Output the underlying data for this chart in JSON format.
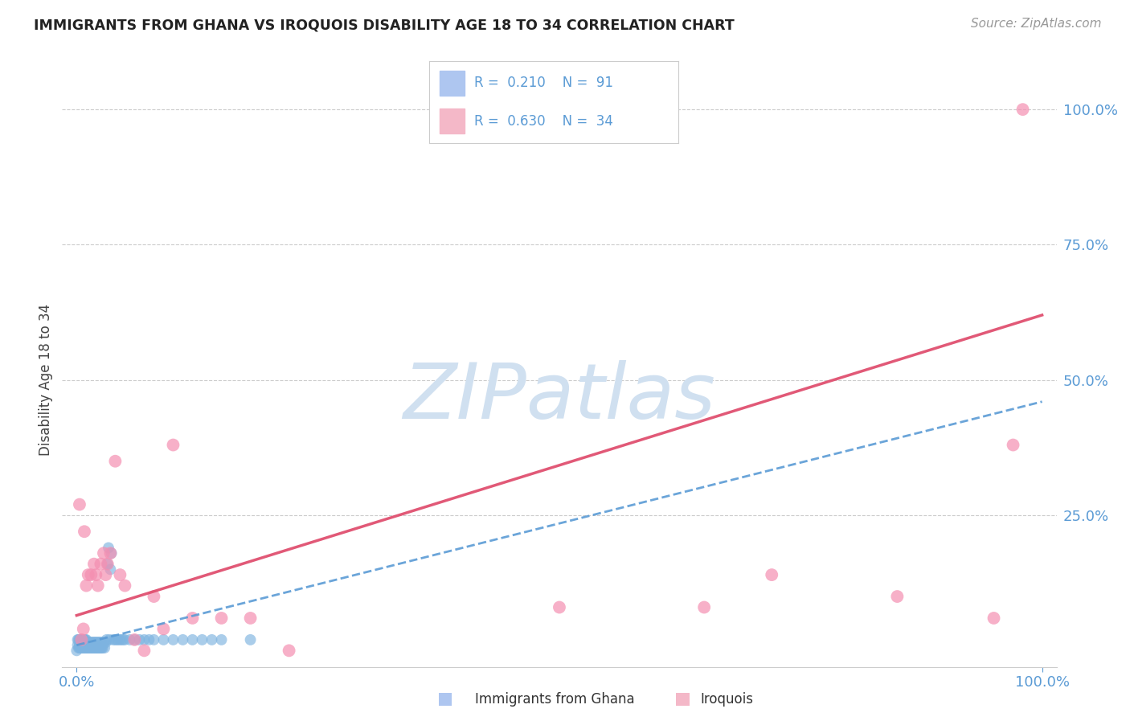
{
  "title": "IMMIGRANTS FROM GHANA VS IROQUOIS DISABILITY AGE 18 TO 34 CORRELATION CHART",
  "source": "Source: ZipAtlas.com",
  "ylabel": "Disability Age 18 to 34",
  "blue_color": "#5b9bd5",
  "pink_color": "#f48fb1",
  "blue_dot_color": "#7db3e0",
  "pink_dot_color": "#f48fb1",
  "blue_line_color": "#5b9bd5",
  "pink_line_color": "#e05070",
  "watermark_color": "#d0e0f0",
  "ghana_N": 91,
  "iroquois_N": 34,
  "ghana_R": 0.21,
  "iroquois_R": 0.63,
  "xlim": [
    0.0,
    1.0
  ],
  "ylim": [
    0.0,
    1.0
  ],
  "yticks": [
    0.0,
    0.25,
    0.5,
    0.75,
    1.0
  ],
  "ytick_labels": [
    "",
    "25.0%",
    "50.0%",
    "75.0%",
    "100.0%"
  ],
  "xticks": [
    0.0,
    1.0
  ],
  "xtick_labels": [
    "0.0%",
    "100.0%"
  ],
  "ghana_x": [
    0.0,
    0.001,
    0.001,
    0.002,
    0.002,
    0.003,
    0.003,
    0.003,
    0.004,
    0.004,
    0.005,
    0.005,
    0.005,
    0.006,
    0.006,
    0.006,
    0.007,
    0.007,
    0.007,
    0.008,
    0.008,
    0.008,
    0.009,
    0.009,
    0.009,
    0.01,
    0.01,
    0.01,
    0.011,
    0.011,
    0.012,
    0.012,
    0.013,
    0.013,
    0.014,
    0.014,
    0.015,
    0.015,
    0.016,
    0.016,
    0.017,
    0.017,
    0.018,
    0.018,
    0.019,
    0.019,
    0.02,
    0.02,
    0.021,
    0.021,
    0.022,
    0.022,
    0.023,
    0.023,
    0.024,
    0.024,
    0.025,
    0.025,
    0.026,
    0.026,
    0.027,
    0.028,
    0.029,
    0.03,
    0.031,
    0.032,
    0.033,
    0.034,
    0.035,
    0.036,
    0.038,
    0.04,
    0.042,
    0.044,
    0.046,
    0.048,
    0.05,
    0.055,
    0.06,
    0.065,
    0.07,
    0.075,
    0.08,
    0.09,
    0.1,
    0.11,
    0.12,
    0.13,
    0.14,
    0.15,
    0.18
  ],
  "ghana_y": [
    0.0,
    0.01,
    0.02,
    0.005,
    0.02,
    0.005,
    0.01,
    0.02,
    0.005,
    0.015,
    0.005,
    0.01,
    0.02,
    0.005,
    0.01,
    0.02,
    0.005,
    0.01,
    0.02,
    0.005,
    0.01,
    0.02,
    0.005,
    0.01,
    0.02,
    0.005,
    0.01,
    0.02,
    0.005,
    0.015,
    0.005,
    0.015,
    0.005,
    0.015,
    0.005,
    0.015,
    0.005,
    0.015,
    0.005,
    0.015,
    0.005,
    0.015,
    0.005,
    0.015,
    0.005,
    0.015,
    0.005,
    0.015,
    0.005,
    0.015,
    0.005,
    0.015,
    0.005,
    0.015,
    0.005,
    0.015,
    0.005,
    0.015,
    0.005,
    0.015,
    0.005,
    0.015,
    0.005,
    0.015,
    0.02,
    0.16,
    0.19,
    0.02,
    0.15,
    0.18,
    0.02,
    0.02,
    0.02,
    0.02,
    0.02,
    0.02,
    0.02,
    0.02,
    0.02,
    0.02,
    0.02,
    0.02,
    0.02,
    0.02,
    0.02,
    0.02,
    0.02,
    0.02,
    0.02,
    0.02,
    0.02
  ],
  "iroquois_x": [
    0.003,
    0.005,
    0.007,
    0.008,
    0.01,
    0.012,
    0.015,
    0.018,
    0.02,
    0.022,
    0.025,
    0.028,
    0.03,
    0.032,
    0.035,
    0.04,
    0.045,
    0.05,
    0.06,
    0.07,
    0.08,
    0.09,
    0.1,
    0.12,
    0.15,
    0.18,
    0.22,
    0.5,
    0.65,
    0.72,
    0.85,
    0.95,
    0.97,
    0.98
  ],
  "iroquois_y": [
    0.27,
    0.02,
    0.04,
    0.22,
    0.12,
    0.14,
    0.14,
    0.16,
    0.14,
    0.12,
    0.16,
    0.18,
    0.14,
    0.16,
    0.18,
    0.35,
    0.14,
    0.12,
    0.02,
    0.0,
    0.1,
    0.04,
    0.38,
    0.06,
    0.06,
    0.06,
    0.0,
    0.08,
    0.08,
    0.14,
    0.1,
    0.06,
    0.38,
    1.0
  ],
  "ghana_trendline_x": [
    0.0,
    1.0
  ],
  "ghana_trendline_y": [
    0.01,
    0.46
  ],
  "iroquois_trendline_x": [
    0.0,
    1.0
  ],
  "iroquois_trendline_y": [
    0.065,
    0.62
  ]
}
